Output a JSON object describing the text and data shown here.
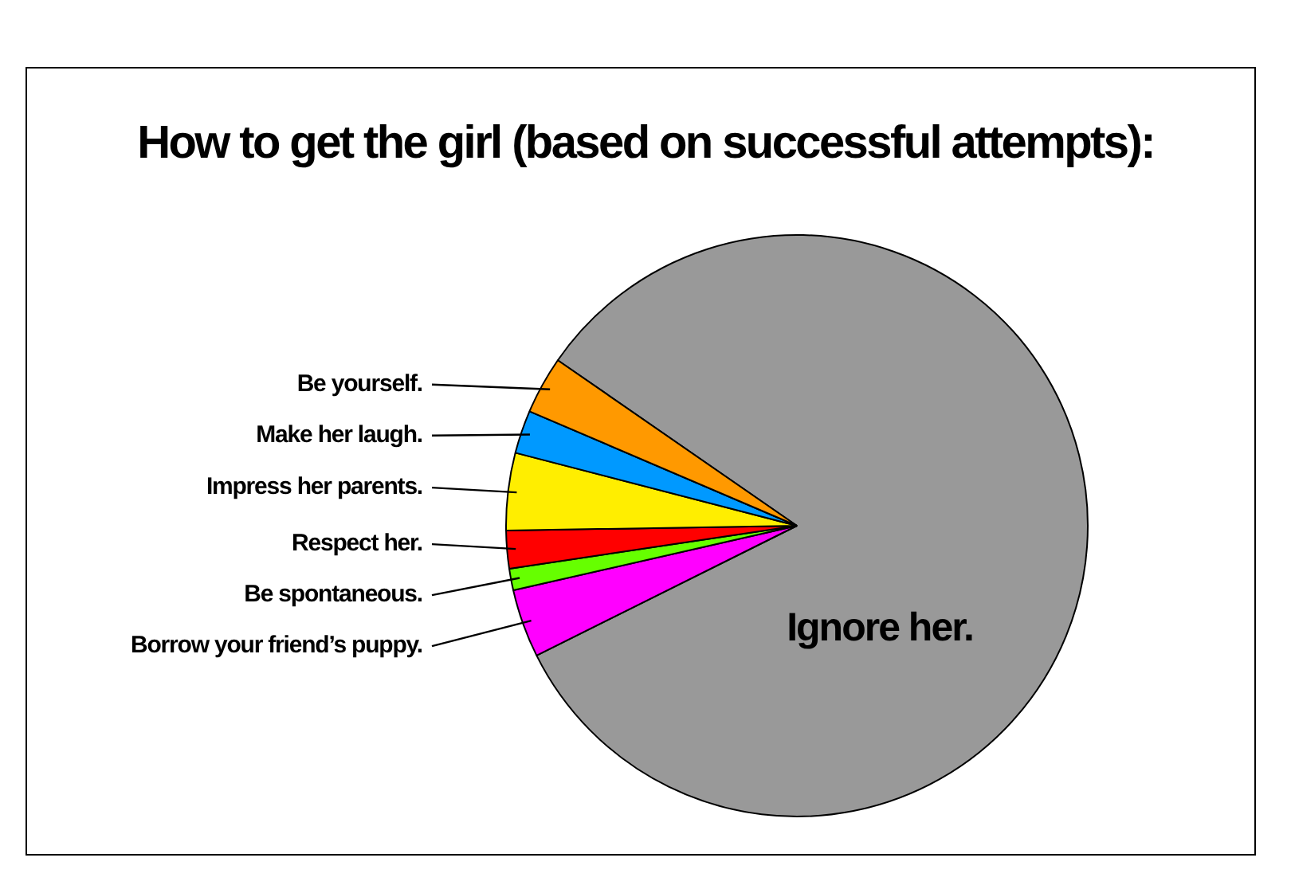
{
  "chart_data": {
    "type": "pie",
    "title": "How to get the girl (based on successful attempts):",
    "categories": [
      "Ignore her.",
      "Borrow your friend’s puppy.",
      "Be spontaneous.",
      "Respect her.",
      "Impress her parents.",
      "Make her laugh.",
      "Be yourself."
    ],
    "values": [
      83.0,
      3.8,
      1.2,
      2.1,
      4.3,
      2.4,
      3.2
    ],
    "colors": [
      "#999999",
      "#ff00ff",
      "#66ff00",
      "#ff0000",
      "#ffee00",
      "#0099ff",
      "#ff9900"
    ],
    "legend": false
  }
}
